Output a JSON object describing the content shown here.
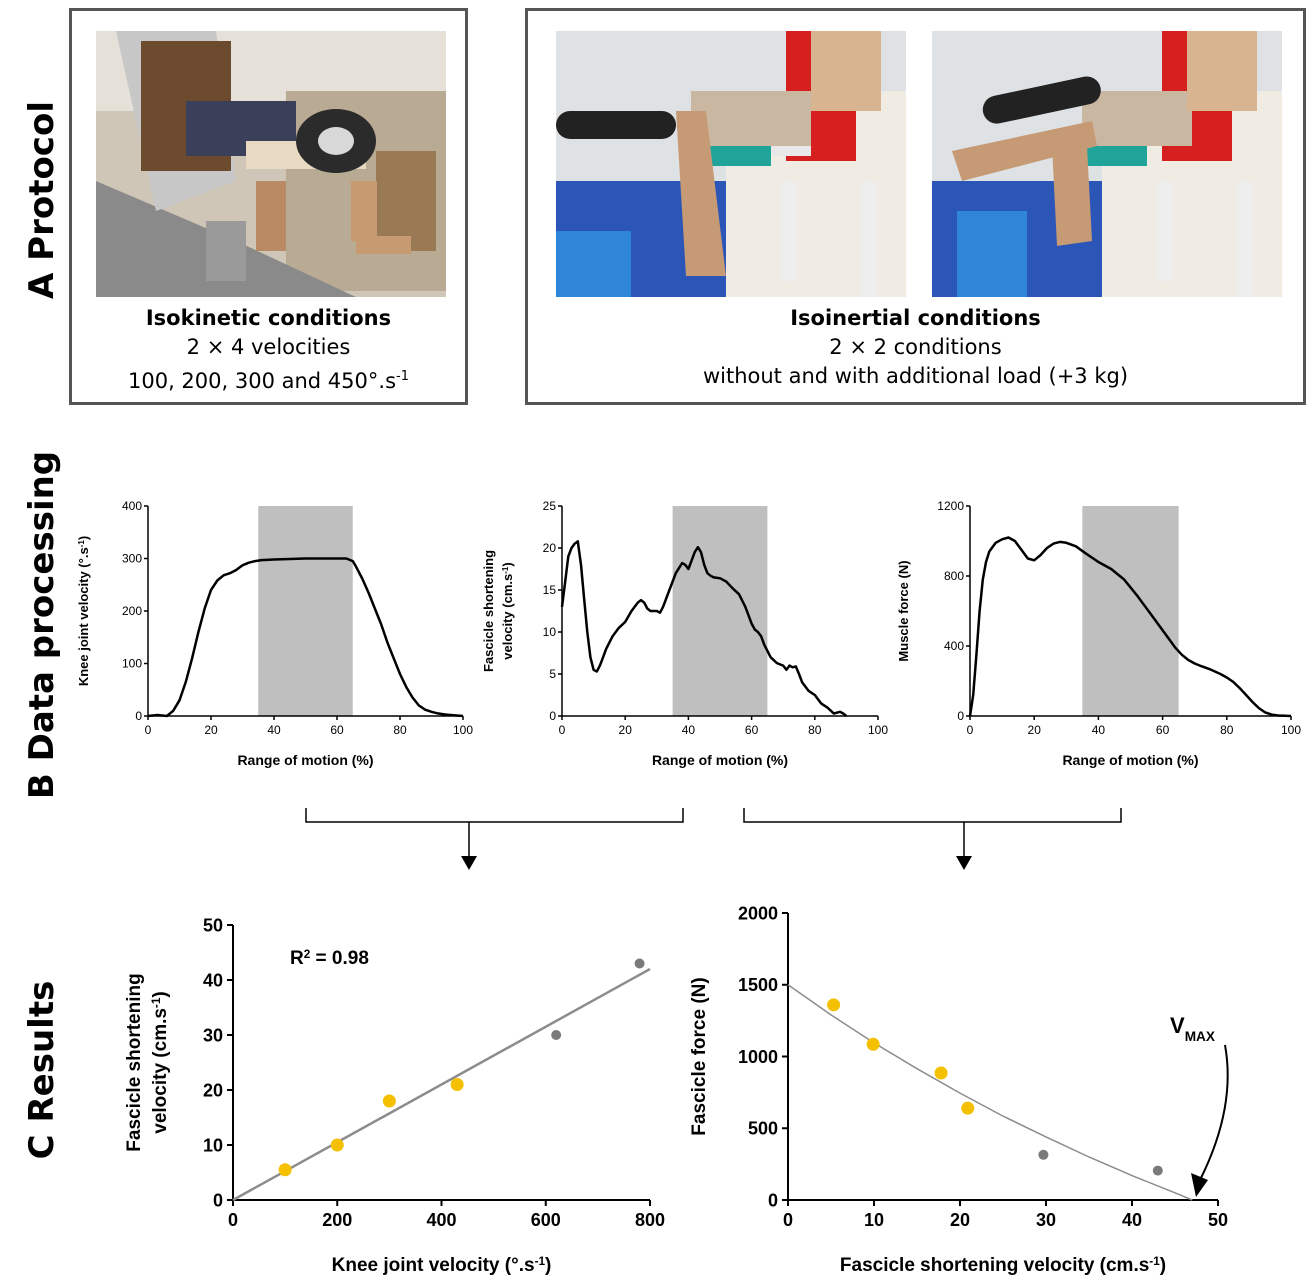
{
  "sections": {
    "a": "A  Protocol",
    "b": "B  Data processing",
    "c": "C  Results"
  },
  "protocol": {
    "isokinetic": {
      "title": "Isokinetic conditions",
      "line1": "2 × 4 velocities",
      "line2": "100, 200, 300 and 450°.s",
      "line2_sup": "-1"
    },
    "isoinertial": {
      "title": "Isoinertial conditions",
      "line1": "2 × 2 conditions",
      "line2": "without and with additional load (+3 kg)"
    }
  },
  "colors": {
    "curve": "#000000",
    "shade": "#bfbfbf",
    "yellow_point": "#f5c000",
    "gray_point": "#7a7a7a",
    "fit_line": "#8c8c8c"
  },
  "chart_data": [
    {
      "id": "knee-velocity",
      "type": "line",
      "xlabel": "Range of motion (%)",
      "ylabel": "Knee joint velocity (°.s",
      "ylabel_sup": "-1",
      "ylabel_end": ")",
      "xlim": [
        0,
        100
      ],
      "ylim": [
        0,
        400
      ],
      "xticks": [
        0,
        20,
        40,
        60,
        80,
        100
      ],
      "yticks": [
        0,
        100,
        200,
        300,
        400
      ],
      "shaded_region": [
        35,
        65
      ],
      "x": [
        0,
        3,
        6,
        8,
        10,
        12,
        14,
        16,
        18,
        20,
        22,
        24,
        26,
        28,
        30,
        32,
        34,
        36,
        40,
        45,
        50,
        55,
        60,
        63,
        65,
        66,
        68,
        70,
        72,
        74,
        76,
        78,
        80,
        82,
        84,
        86,
        88,
        90,
        92,
        94,
        96,
        98,
        100
      ],
      "y": [
        0,
        2,
        0,
        10,
        30,
        65,
        110,
        160,
        205,
        240,
        258,
        268,
        272,
        278,
        287,
        292,
        295,
        297,
        298,
        299,
        300,
        300,
        300,
        300,
        295,
        285,
        262,
        235,
        205,
        175,
        140,
        110,
        80,
        55,
        35,
        20,
        12,
        8,
        5,
        3,
        2,
        1,
        0
      ]
    },
    {
      "id": "fascicle-velocity",
      "type": "line",
      "xlabel": "Range of motion (%)",
      "ylabel_line1": "Fascicle shortening",
      "ylabel": "velocity (cm.s",
      "ylabel_sup": "-1",
      "ylabel_end": ")",
      "xlim": [
        0,
        100
      ],
      "ylim": [
        0,
        25
      ],
      "xticks": [
        0,
        20,
        40,
        60,
        80,
        100
      ],
      "yticks": [
        0,
        5,
        10,
        15,
        20,
        25
      ],
      "shaded_region": [
        35,
        65
      ],
      "x": [
        0,
        1,
        2,
        3,
        4,
        5,
        6,
        7,
        8,
        9,
        10,
        11,
        12,
        13,
        14,
        16,
        18,
        20,
        22,
        24,
        25,
        26,
        27,
        28,
        30,
        31,
        32,
        34,
        36,
        38,
        39,
        40,
        41,
        42,
        43,
        44,
        45,
        46,
        47,
        48,
        50,
        52,
        54,
        56,
        58,
        60,
        61,
        62,
        63,
        64,
        66,
        68,
        70,
        71,
        72,
        73,
        74,
        75,
        76,
        78,
        80,
        82,
        84,
        86,
        88,
        89,
        90
      ],
      "y": [
        13,
        16,
        19,
        20,
        20.5,
        20.8,
        18,
        14,
        10,
        7,
        5.5,
        5.3,
        6,
        7,
        8,
        9.5,
        10.5,
        11.2,
        12.5,
        13.5,
        13.8,
        13.5,
        12.8,
        12.5,
        12.5,
        12.3,
        13,
        15,
        17,
        18.2,
        18,
        17.5,
        18.5,
        19.5,
        20.1,
        19.5,
        18,
        17,
        16.7,
        16.5,
        16.4,
        16,
        15.2,
        14.5,
        13,
        11,
        10.3,
        10,
        9.5,
        8.5,
        7,
        6.3,
        6,
        5.5,
        6,
        5.8,
        5.9,
        5,
        4,
        3,
        2.5,
        1.5,
        1,
        0.3,
        0.5,
        0.3,
        0
      ]
    },
    {
      "id": "muscle-force",
      "type": "line",
      "xlabel": "Range of motion (%)",
      "ylabel": "Muscle force (N)",
      "xlim": [
        0,
        100
      ],
      "ylim": [
        0,
        1200
      ],
      "xticks": [
        0,
        20,
        40,
        60,
        80,
        100
      ],
      "yticks": [
        0,
        400,
        800,
        1200
      ],
      "shaded_region": [
        35,
        65
      ],
      "x": [
        0,
        1,
        2,
        3,
        4,
        5,
        6,
        8,
        10,
        12,
        14,
        16,
        18,
        20,
        22,
        24,
        26,
        28,
        30,
        33,
        36,
        40,
        44,
        48,
        52,
        56,
        60,
        62,
        64,
        66,
        68,
        70,
        72,
        75,
        78,
        80,
        82,
        84,
        86,
        88,
        90,
        92,
        94,
        96,
        98,
        100
      ],
      "y": [
        0,
        120,
        350,
        600,
        780,
        880,
        940,
        990,
        1010,
        1020,
        1000,
        950,
        900,
        890,
        920,
        960,
        985,
        995,
        990,
        970,
        930,
        880,
        840,
        780,
        690,
        590,
        490,
        440,
        390,
        350,
        320,
        300,
        285,
        265,
        240,
        220,
        195,
        160,
        120,
        80,
        45,
        20,
        8,
        3,
        1,
        0
      ]
    },
    {
      "id": "velocity-relation",
      "type": "scatter",
      "xlabel": "Knee joint velocity (°.s",
      "xlabel_sup": "-1",
      "xlabel_end": ")",
      "ylabel_line1": "Fascicle shortening",
      "ylabel": "velocity (cm.s",
      "ylabel_sup": "-1",
      "ylabel_end": ")",
      "annotation": "R",
      "annotation_sup": "2",
      "annotation_end": " = 0.98",
      "xlim": [
        0,
        800
      ],
      "ylim": [
        0,
        50
      ],
      "xticks": [
        0,
        200,
        400,
        600,
        800
      ],
      "yticks": [
        0,
        10,
        20,
        30,
        40,
        50
      ],
      "series": [
        {
          "color": "yellow",
          "x": [
            100,
            200,
            300,
            430
          ],
          "y": [
            5.5,
            10,
            18,
            21
          ]
        },
        {
          "color": "gray",
          "x": [
            620,
            780
          ],
          "y": [
            30,
            43
          ]
        }
      ],
      "fit": {
        "x": [
          0,
          800
        ],
        "y": [
          0,
          42
        ]
      }
    },
    {
      "id": "force-velocity",
      "type": "scatter",
      "xlabel": "Fascicle shortening velocity (cm.s",
      "xlabel_sup": "-1",
      "xlabel_end": ")",
      "ylabel": "Fascicle force (N)",
      "annotation": "V",
      "annotation_sub": "MAX",
      "xlim": [
        0,
        50
      ],
      "ylim": [
        0,
        2000
      ],
      "xticks": [
        0,
        10,
        20,
        30,
        40,
        50
      ],
      "yticks": [
        0,
        500,
        1000,
        1500,
        2000
      ],
      "series": [
        {
          "color": "yellow",
          "x": [
            5.3,
            9.9,
            17.8,
            20.9
          ],
          "y": [
            1360,
            1085,
            885,
            640
          ]
        },
        {
          "color": "gray",
          "x": [
            29.7,
            43
          ],
          "y": [
            315,
            205
          ]
        }
      ],
      "fit": {
        "x": [
          0,
          5,
          10,
          15,
          20,
          25,
          30,
          35,
          40,
          45,
          47
        ],
        "y": [
          1500,
          1290,
          1095,
          915,
          745,
          585,
          440,
          300,
          170,
          50,
          0
        ]
      }
    }
  ]
}
